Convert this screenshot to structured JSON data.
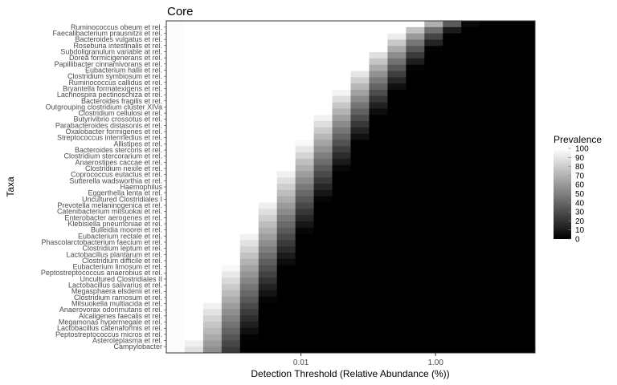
{
  "chart_data": {
    "type": "heatmap",
    "title": "Core",
    "xlabel": "Detection Threshold (Relative Abundance (%))",
    "ylabel": "Taxa",
    "x_scale": "log10",
    "x_tick_labels": [
      "0.01",
      "1.00"
    ],
    "x_tick_values": [
      0.01,
      1.0
    ],
    "x_range": [
      0.0001,
      30
    ],
    "legend": {
      "title": "Prevalence",
      "range": [
        0,
        100
      ],
      "ticks": [
        100,
        90,
        80,
        70,
        60,
        50,
        40,
        30,
        20,
        10,
        0
      ],
      "low_color": "#000000",
      "high_color": "#ffffff",
      "placement": "right"
    },
    "taxa": [
      "Ruminococcus obeum et rel.",
      "Faecalibacterium prausnitzii et rel.",
      "Bacteroides vulgatus et rel.",
      "Roseburia intestinalis et rel.",
      "Subdoligranulum variable at rel.",
      "Dorea formicigenerans et rel.",
      "Papillibacter cinnamivorans et rel.",
      "Eubacterium hallii et rel.",
      "Clostridium symbiosum et rel.",
      "Ruminococcus callidus et rel.",
      "Bryantella formatexigens et rel.",
      "Lachnospira pectinoschiza et rel.",
      "Bacteroides fragilis et rel.",
      "Outgrouping clostridium cluster XIVa",
      "Clostridium cellulosi et rel.",
      "Butyrivibrio crossotus et rel.",
      "Parabacteroides distasonis et rel.",
      "Oxalobacter formigenes et rel.",
      "Streptococcus intermedius et rel.",
      "Allistipes et rel.",
      "Bacteroides stercoris et rel.",
      "Clostridium stercorarium et rel.",
      "Anaerostipes caccae et rel.",
      "Clostridium nexile et rel.",
      "Coprococcus eutactus et rel.",
      "Sutterella wadsworthia et rel.",
      "Haemophilus",
      "Eggerthella lenta et rel.",
      "Uncultured Clostridiales I",
      "Prevotella melaninogenica et rel.",
      "Catenibacterium mitsuokai et rel.",
      "Enterobacter aerogenes et rel.",
      "Klebisiella pneumoniae et rel.",
      "Bulleidia moorei et rel.",
      "Eubacterium rectale et rel.",
      "Phascolarctobacterium faecium et rel.",
      "Clostridium leptum et rel.",
      "Lactobacillus plantarum et rel.",
      "Clostridium difficile et rel.",
      "Eubacterium limosum et rel.",
      "Peptostreptococcus anaerobius et rel.",
      "Uncultured Clostridiales II",
      "Lactobacillus salivarius et rel.",
      "Megasphaera elsdenii et rel.",
      "Clostridium ramosum et rel.",
      "Mitsuokella multiacida et rel.",
      "Anaerovorax odorimutans et rel.",
      "Alcaligenes faecalis et rel.",
      "Megamonas hypermegale et rel.",
      "Lactobacillus catenaformis et rel.",
      "Peptostreptococcus micros et rel.",
      "Asteroleplasma et rel.",
      "Campylobacter"
    ]
  }
}
